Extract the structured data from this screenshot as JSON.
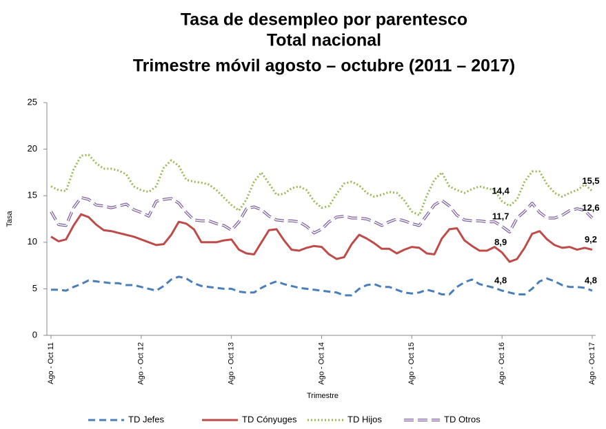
{
  "chart_data": {
    "type": "line",
    "title": [
      "Tasa de desempleo por parentesco",
      "Total nacional",
      "Trimestre móvil agosto – octubre (2011 – 2017)"
    ],
    "x_label": "Trimestre",
    "y_label": "Tasa",
    "categories": [
      "Ago - Oct 11",
      null,
      null,
      null,
      null,
      null,
      null,
      null,
      null,
      null,
      null,
      null,
      "Ago - Oct 12",
      null,
      null,
      null,
      null,
      null,
      null,
      null,
      null,
      null,
      null,
      null,
      "Ago - Oct 13",
      null,
      null,
      null,
      null,
      null,
      null,
      null,
      null,
      null,
      null,
      null,
      "Ago - Oct 14",
      null,
      null,
      null,
      null,
      null,
      null,
      null,
      null,
      null,
      null,
      null,
      "Ago - Oct 15",
      null,
      null,
      null,
      null,
      null,
      null,
      null,
      null,
      null,
      null,
      null,
      "Ago - Oct 16",
      null,
      null,
      null,
      null,
      null,
      null,
      null,
      null,
      null,
      null,
      null,
      "Ago - Oct 17"
    ],
    "ylim": [
      0,
      25
    ],
    "yticks": [
      0,
      5,
      10,
      15,
      20,
      25
    ],
    "grid": false,
    "legend": "bottom",
    "series": [
      {
        "name": "TD Jefes",
        "color": "#4a7ebb",
        "dash": "dashed",
        "values": [
          4.9,
          4.9,
          4.8,
          5.2,
          5.5,
          5.9,
          5.8,
          5.7,
          5.6,
          5.6,
          5.4,
          5.4,
          5.2,
          5.0,
          4.8,
          5.3,
          6.0,
          6.3,
          6.1,
          5.6,
          5.3,
          5.2,
          5.1,
          5.0,
          5.0,
          4.7,
          4.6,
          4.6,
          5.1,
          5.5,
          5.8,
          5.5,
          5.3,
          5.1,
          5.0,
          4.9,
          4.8,
          4.7,
          4.6,
          4.3,
          4.3,
          5.0,
          5.4,
          5.5,
          5.2,
          5.2,
          4.9,
          4.6,
          4.5,
          4.6,
          4.9,
          4.7,
          4.4,
          4.4,
          5.2,
          5.7,
          6.0,
          5.5,
          5.3,
          5.1,
          4.8,
          4.6,
          4.4,
          4.4,
          5.0,
          5.8,
          6.1,
          5.8,
          5.4,
          5.2,
          5.2,
          5.1,
          4.8
        ],
        "value_labels": [
          null,
          null,
          null,
          null,
          null,
          null,
          null,
          null,
          null,
          null,
          null,
          null,
          null,
          null,
          null,
          null,
          null,
          null,
          null,
          null,
          null,
          null,
          null,
          null,
          null,
          null,
          null,
          null,
          null,
          null,
          null,
          null,
          null,
          null,
          null,
          null,
          null,
          null,
          null,
          null,
          null,
          null,
          null,
          null,
          null,
          null,
          null,
          null,
          null,
          null,
          null,
          null,
          null,
          null,
          null,
          null,
          null,
          null,
          null,
          null,
          "4,8",
          null,
          null,
          null,
          null,
          null,
          null,
          null,
          null,
          null,
          null,
          null,
          "4,8"
        ]
      },
      {
        "name": "TD Cónyuges",
        "color": "#be4b48",
        "dash": "solid",
        "values": [
          10.6,
          10.1,
          10.3,
          11.8,
          13.0,
          12.7,
          11.9,
          11.3,
          11.2,
          11.0,
          10.8,
          10.6,
          10.3,
          10.0,
          9.7,
          9.8,
          10.8,
          12.2,
          12.0,
          11.4,
          10.0,
          10.0,
          10.0,
          10.2,
          10.3,
          9.2,
          8.8,
          8.7,
          10.0,
          11.3,
          11.4,
          10.2,
          9.2,
          9.1,
          9.4,
          9.6,
          9.5,
          8.7,
          8.2,
          8.4,
          9.8,
          10.8,
          10.4,
          9.9,
          9.3,
          9.3,
          8.8,
          9.2,
          9.5,
          9.4,
          8.8,
          8.7,
          10.4,
          11.4,
          11.5,
          10.2,
          9.6,
          9.1,
          9.1,
          9.5,
          8.9,
          7.9,
          8.2,
          9.4,
          10.9,
          11.2,
          10.3,
          9.7,
          9.4,
          9.5,
          9.2,
          9.4,
          9.2
        ],
        "value_labels": [
          null,
          null,
          null,
          null,
          null,
          null,
          null,
          null,
          null,
          null,
          null,
          null,
          null,
          null,
          null,
          null,
          null,
          null,
          null,
          null,
          null,
          null,
          null,
          null,
          null,
          null,
          null,
          null,
          null,
          null,
          null,
          null,
          null,
          null,
          null,
          null,
          null,
          null,
          null,
          null,
          null,
          null,
          null,
          null,
          null,
          null,
          null,
          null,
          null,
          null,
          null,
          null,
          null,
          null,
          null,
          null,
          null,
          null,
          null,
          null,
          "8,9",
          null,
          null,
          null,
          null,
          null,
          null,
          null,
          null,
          null,
          null,
          null,
          "9,2"
        ]
      },
      {
        "name": "TD Hijos",
        "color": "#98b954",
        "dash": "dotted",
        "values": [
          16.0,
          15.6,
          15.5,
          17.8,
          19.3,
          19.4,
          18.5,
          17.9,
          17.9,
          17.7,
          17.3,
          16.0,
          15.6,
          15.4,
          16.0,
          18.0,
          18.8,
          18.2,
          16.7,
          16.5,
          16.4,
          16.2,
          15.6,
          14.8,
          14.0,
          13.4,
          14.6,
          16.5,
          17.5,
          16.3,
          15.1,
          15.2,
          15.8,
          16.0,
          15.6,
          14.4,
          13.7,
          13.9,
          15.2,
          16.3,
          16.5,
          16.1,
          15.3,
          14.9,
          15.1,
          15.4,
          15.3,
          14.5,
          13.3,
          12.9,
          15.0,
          16.7,
          17.5,
          16.0,
          15.6,
          15.3,
          15.7,
          16.0,
          15.8,
          15.6,
          14.4,
          13.9,
          14.6,
          16.5,
          17.6,
          17.6,
          16.2,
          15.3,
          14.9,
          15.3,
          15.6,
          16.2,
          15.5
        ],
        "value_labels": [
          null,
          null,
          null,
          null,
          null,
          null,
          null,
          null,
          null,
          null,
          null,
          null,
          null,
          null,
          null,
          null,
          null,
          null,
          null,
          null,
          null,
          null,
          null,
          null,
          null,
          null,
          null,
          null,
          null,
          null,
          null,
          null,
          null,
          null,
          null,
          null,
          null,
          null,
          null,
          null,
          null,
          null,
          null,
          null,
          null,
          null,
          null,
          null,
          null,
          null,
          null,
          null,
          null,
          null,
          null,
          null,
          null,
          null,
          null,
          null,
          "14,4",
          null,
          null,
          null,
          null,
          null,
          null,
          null,
          null,
          null,
          null,
          null,
          "15,5"
        ]
      },
      {
        "name": "TD Otros",
        "color": "#7d5fa0",
        "dash": "double",
        "values": [
          13.3,
          11.9,
          11.8,
          13.7,
          14.8,
          14.6,
          14.0,
          13.9,
          13.7,
          13.9,
          14.1,
          13.5,
          13.2,
          12.8,
          14.4,
          14.6,
          14.7,
          14.2,
          13.2,
          12.4,
          12.3,
          12.3,
          12.0,
          11.8,
          11.3,
          12.2,
          13.6,
          13.8,
          13.5,
          12.8,
          12.4,
          12.3,
          12.3,
          12.2,
          11.7,
          11.0,
          11.4,
          12.2,
          12.7,
          12.8,
          12.6,
          12.6,
          12.5,
          12.2,
          11.8,
          12.2,
          12.5,
          12.3,
          12.0,
          11.8,
          12.9,
          14.0,
          14.5,
          13.9,
          12.9,
          12.4,
          12.3,
          12.3,
          12.2,
          12.2,
          11.7,
          11.1,
          12.6,
          13.3,
          14.2,
          13.2,
          12.6,
          12.6,
          12.9,
          13.4,
          13.6,
          13.4,
          12.6
        ],
        "value_labels": [
          null,
          null,
          null,
          null,
          null,
          null,
          null,
          null,
          null,
          null,
          null,
          null,
          null,
          null,
          null,
          null,
          null,
          null,
          null,
          null,
          null,
          null,
          null,
          null,
          null,
          null,
          null,
          null,
          null,
          null,
          null,
          null,
          null,
          null,
          null,
          null,
          null,
          null,
          null,
          null,
          null,
          null,
          null,
          null,
          null,
          null,
          null,
          null,
          null,
          null,
          null,
          null,
          null,
          null,
          null,
          null,
          null,
          null,
          null,
          null,
          "11,7",
          null,
          null,
          null,
          null,
          null,
          null,
          null,
          null,
          null,
          null,
          null,
          "12,6"
        ]
      }
    ]
  }
}
